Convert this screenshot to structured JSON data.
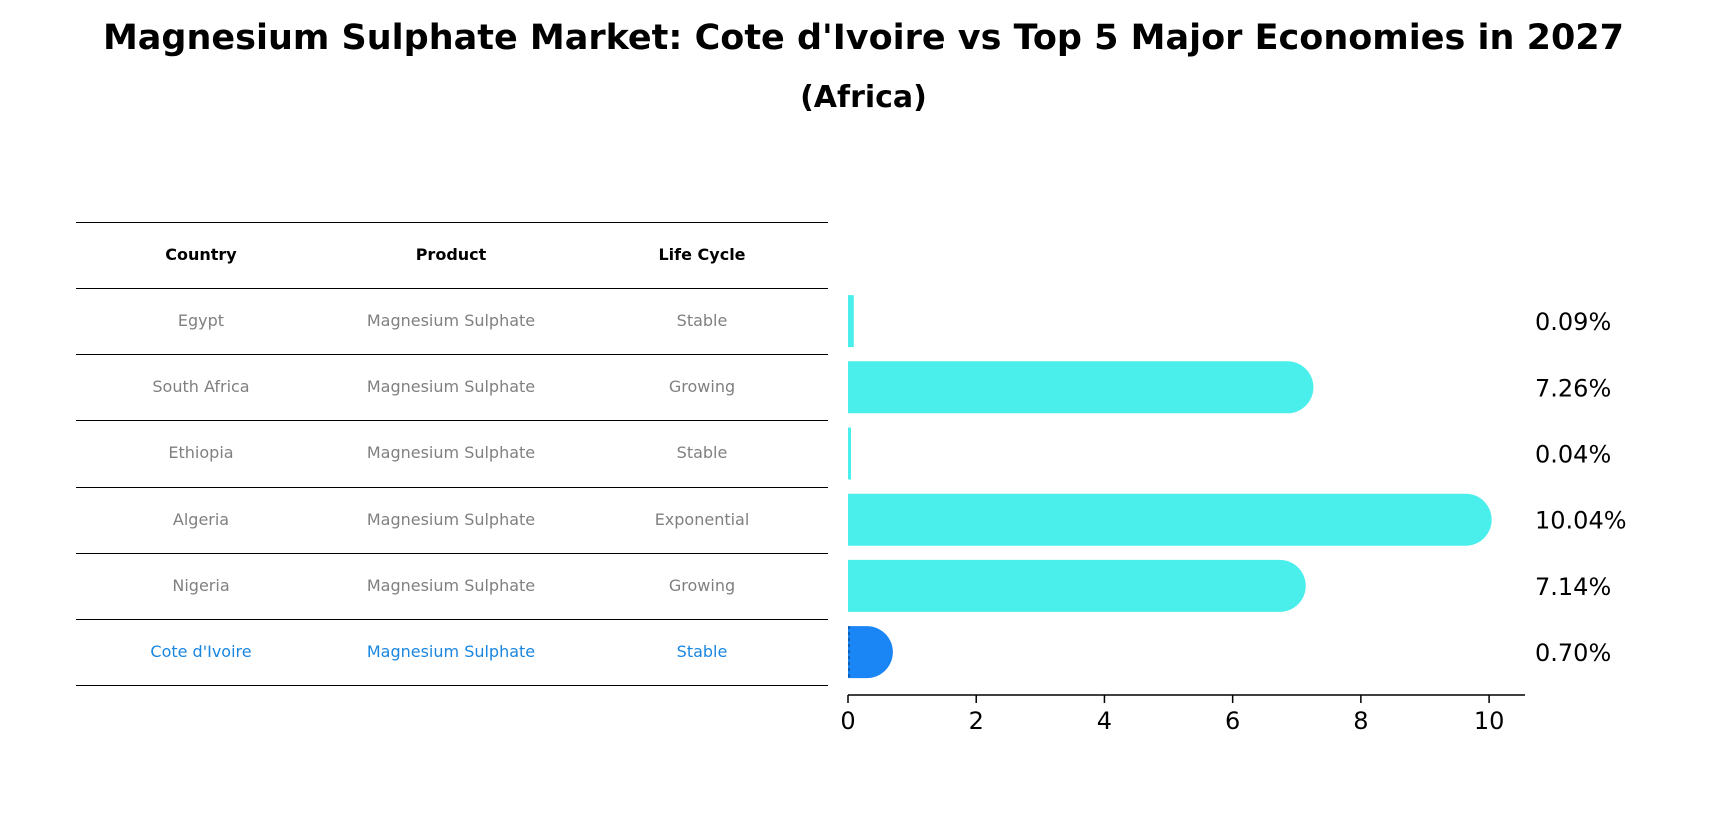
{
  "title": "Magnesium Sulphate Market: Cote d'Ivoire vs Top 5 Major Economies in 2027",
  "subtitle": "(Africa)",
  "table": {
    "headers": [
      "Country",
      "Product",
      "Life Cycle"
    ],
    "rows": [
      [
        "Egypt",
        "Magnesium Sulphate",
        "Stable"
      ],
      [
        "South Africa",
        "Magnesium Sulphate",
        "Growing"
      ],
      [
        "Ethiopia",
        "Magnesium Sulphate",
        "Stable"
      ],
      [
        "Algeria",
        "Magnesium Sulphate",
        "Exponential"
      ],
      [
        "Nigeria",
        "Magnesium Sulphate",
        "Growing"
      ],
      [
        "Cote d'Ivoire",
        "Magnesium Sulphate",
        "Stable"
      ]
    ],
    "highlight_row": 5
  },
  "chart_data": {
    "type": "bar",
    "orientation": "horizontal",
    "title": "Magnesium Sulphate Market: Cote d'Ivoire vs Top 5 Major Economies in 2027",
    "subtitle": "(Africa)",
    "categories": [
      "Egypt",
      "South Africa",
      "Ethiopia",
      "Algeria",
      "Nigeria",
      "Cote d'Ivoire"
    ],
    "values": [
      0.09,
      7.26,
      0.04,
      10.04,
      7.14,
      0.7
    ],
    "value_labels": [
      "0.09%",
      "7.26%",
      "0.04%",
      "10.04%",
      "7.14%",
      "0.70%"
    ],
    "xlim": [
      0,
      10.56
    ],
    "xticks": [
      0,
      2,
      4,
      6,
      8,
      10
    ],
    "grid": false,
    "colors": {
      "default": "#4aeeeb",
      "highlight": "#1a86f5"
    },
    "highlight_index": 5
  }
}
